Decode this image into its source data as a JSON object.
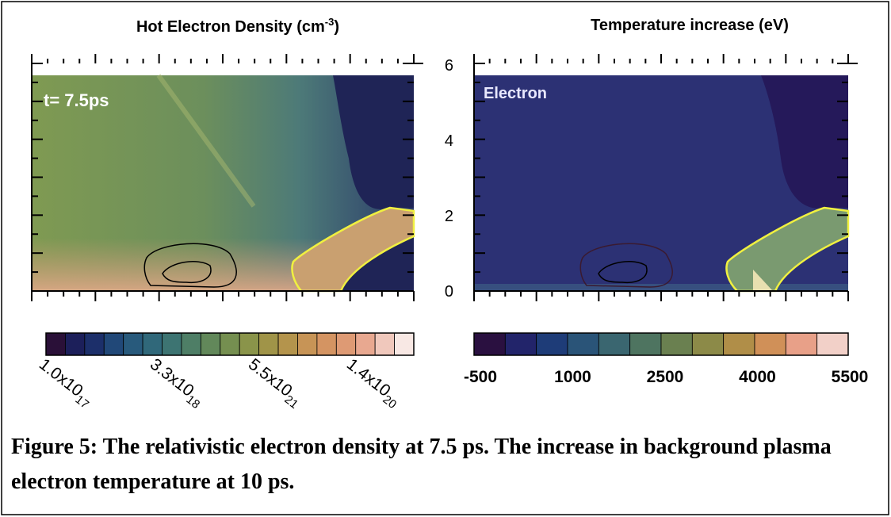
{
  "panels": [
    {
      "title": {
        "text": "Hot Electron Density (cm",
        "sup": "-3",
        "end": ")"
      },
      "annotation": "t= 7.5ps",
      "colorbar_labels": [
        {
          "base": "1.0x10",
          "exp": "17"
        },
        {
          "base": "3.3x10",
          "exp": "18"
        },
        {
          "base": "5.5x10",
          "exp": "21"
        },
        {
          "base": "1.4x10",
          "exp": "20"
        }
      ]
    },
    {
      "title": {
        "text": "Temperature increase (eV)"
      },
      "annotation": "Electron",
      "y_ticks": [
        "0",
        "2",
        "4",
        "6"
      ],
      "colorbar_labels": [
        "-500",
        "1000",
        "2500",
        "4000",
        "5500"
      ]
    }
  ],
  "caption": "Figure 5: The relativistic electron density at 7.5 ps. The increase in background plasma electron temperature at 10 ps."
}
